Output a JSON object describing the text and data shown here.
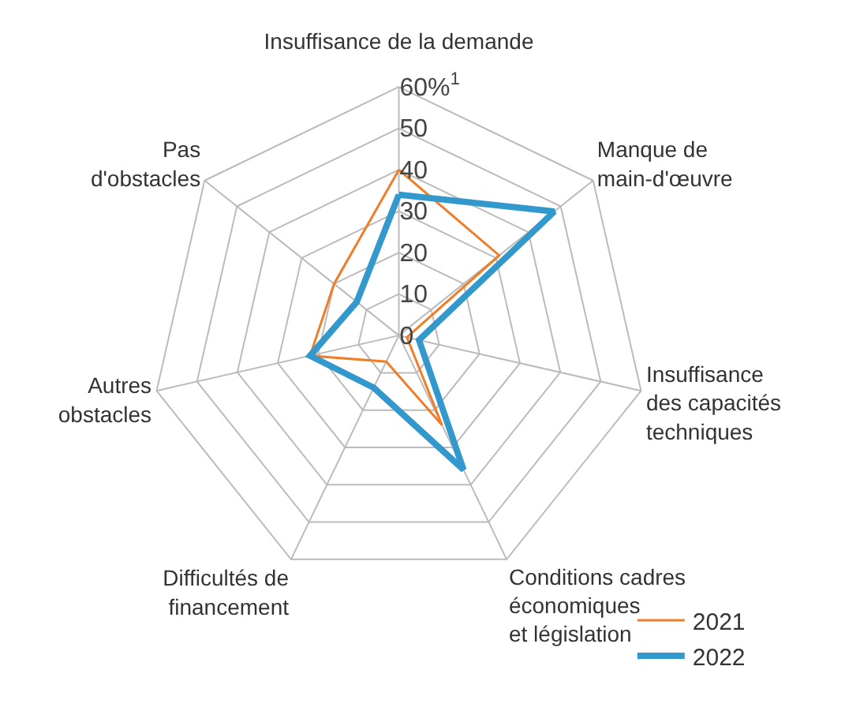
{
  "chart_data": {
    "type": "radar",
    "categories": [
      "Insuffisance de la demande",
      "Manque de\nmain-d'œuvre",
      "Insuffisance\ndes capacités\ntechniques",
      "Conditions cadres\néconomiques\net législation",
      "Difficultés de\nfinancement",
      "Autres\nobstacles",
      "Pas\nd'obstacles"
    ],
    "series": [
      {
        "name": "2021",
        "color": "#f07d28",
        "values": [
          40,
          31,
          2,
          24,
          7,
          22,
          20
        ]
      },
      {
        "name": "2022",
        "color": "#3399cc",
        "values": [
          34,
          48,
          5,
          36,
          14,
          22,
          13
        ]
      }
    ],
    "ylim": [
      0,
      60
    ],
    "yticks": [
      0,
      10,
      20,
      30,
      40,
      50,
      {
        "value": 60,
        "label": "60%$^{1}$"
      }
    ],
    "grid": true,
    "legend": "bottom right"
  }
}
